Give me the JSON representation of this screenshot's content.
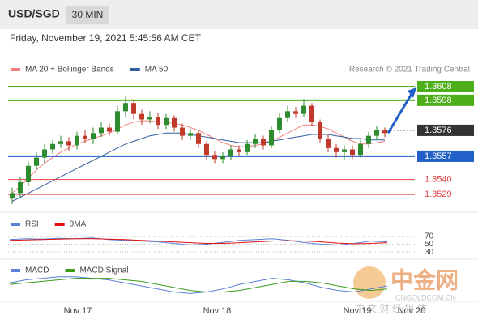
{
  "header": {
    "symbol": "USD/SGD",
    "interval": "30 MIN",
    "datetime": "Friday, November 19, 2021 5:45:56 AM CET"
  },
  "chart_data": [
    {
      "type": "candlestick",
      "credit": "Research © 2021 Trading Central",
      "ylim": [
        1.3516,
        1.3627
      ],
      "up_color": "#2e8b2e",
      "down_color": "#c0392b",
      "open": [
        1.3526,
        1.353,
        1.3538,
        1.355,
        1.3556,
        1.3562,
        1.3566,
        1.3568,
        1.3565,
        1.3572,
        1.357,
        1.3574,
        1.3578,
        1.3575,
        1.359,
        1.3596,
        1.3588,
        1.3584,
        1.3586,
        1.358,
        1.3585,
        1.3578,
        1.3572,
        1.3574,
        1.3566,
        1.3558,
        1.3555,
        1.3557,
        1.3562,
        1.356,
        1.3566,
        1.357,
        1.3565,
        1.3576,
        1.3585,
        1.359,
        1.3588,
        1.3594,
        1.3582,
        1.357,
        1.3563,
        1.356,
        1.3562,
        1.3558,
        1.3566,
        1.3572,
        1.3576
      ],
      "high": [
        1.3534,
        1.3542,
        1.3553,
        1.356,
        1.3566,
        1.3569,
        1.3572,
        1.3571,
        1.3575,
        1.3576,
        1.3578,
        1.3582,
        1.3581,
        1.3594,
        1.3601,
        1.3598,
        1.3591,
        1.359,
        1.3589,
        1.3588,
        1.3587,
        1.3581,
        1.3577,
        1.3576,
        1.3568,
        1.3561,
        1.356,
        1.3565,
        1.3565,
        1.3569,
        1.3573,
        1.3572,
        1.3579,
        1.3589,
        1.3594,
        1.3593,
        1.3599,
        1.3596,
        1.3584,
        1.3573,
        1.3566,
        1.3565,
        1.3565,
        1.3569,
        1.3575,
        1.3579,
        1.3578
      ],
      "low": [
        1.3522,
        1.3527,
        1.3535,
        1.3547,
        1.3552,
        1.3559,
        1.3563,
        1.3561,
        1.3562,
        1.3567,
        1.3566,
        1.3571,
        1.3572,
        1.3573,
        1.3586,
        1.3584,
        1.358,
        1.3581,
        1.3577,
        1.3577,
        1.3575,
        1.3569,
        1.3569,
        1.3563,
        1.3554,
        1.3552,
        1.3552,
        1.3554,
        1.3557,
        1.3558,
        1.3563,
        1.3562,
        1.3563,
        1.3574,
        1.3582,
        1.3585,
        1.3586,
        1.3579,
        1.3567,
        1.356,
        1.3556,
        1.3554,
        1.3555,
        1.3556,
        1.3563,
        1.3569,
        1.3571
      ],
      "close": [
        1.353,
        1.3538,
        1.355,
        1.3556,
        1.3562,
        1.3566,
        1.3568,
        1.3565,
        1.3572,
        1.357,
        1.3574,
        1.3578,
        1.3575,
        1.359,
        1.3596,
        1.3588,
        1.3584,
        1.3586,
        1.358,
        1.3585,
        1.3578,
        1.3572,
        1.3574,
        1.3566,
        1.3558,
        1.3555,
        1.3557,
        1.3562,
        1.356,
        1.3566,
        1.357,
        1.3565,
        1.3576,
        1.3585,
        1.359,
        1.3588,
        1.3594,
        1.3582,
        1.357,
        1.3563,
        1.356,
        1.3562,
        1.3558,
        1.3566,
        1.3572,
        1.3576,
        1.3574
      ],
      "series": [
        {
          "name": "MA 20 + Bollinger Bands",
          "color": "#f08080",
          "values": [
            1.353,
            1.3535,
            1.3541,
            1.3547,
            1.3552,
            1.3556,
            1.356,
            1.3563,
            1.3566,
            1.3568,
            1.357,
            1.3572,
            1.3574,
            1.3577,
            1.358,
            1.3582,
            1.3583,
            1.3583,
            1.3582,
            1.3582,
            1.3581,
            1.358,
            1.3578,
            1.3576,
            1.3573,
            1.357,
            1.3567,
            1.3565,
            1.3564,
            1.3564,
            1.3565,
            1.3566,
            1.3568,
            1.3571,
            1.3574,
            1.3577,
            1.358,
            1.358,
            1.3579,
            1.3577,
            1.3574,
            1.3571,
            1.3568,
            1.3566,
            1.3566,
            1.3567,
            1.3568
          ]
        },
        {
          "name": "MA 50",
          "color": "#2f5fa0",
          "values": [
            1.3524,
            1.3527,
            1.353,
            1.3533,
            1.3536,
            1.3539,
            1.3542,
            1.3545,
            1.3548,
            1.3551,
            1.3554,
            1.3557,
            1.356,
            1.3563,
            1.3566,
            1.3568,
            1.357,
            1.3572,
            1.3573,
            1.3574,
            1.3574,
            1.3574,
            1.3573,
            1.3572,
            1.3571,
            1.357,
            1.3569,
            1.3568,
            1.3567,
            1.3567,
            1.3567,
            1.3567,
            1.3568,
            1.3569,
            1.357,
            1.3571,
            1.3572,
            1.3573,
            1.3573,
            1.3573,
            1.3572,
            1.3571,
            1.357,
            1.357,
            1.3569,
            1.3569,
            1.3569
          ]
        }
      ],
      "levels": [
        {
          "value": 1.3608,
          "label": "1.3608",
          "color": "#4caf1a",
          "style": "box"
        },
        {
          "value": 1.3598,
          "label": "1.3598",
          "color": "#4caf1a",
          "style": "box"
        },
        {
          "value": 1.3576,
          "label": "1.3576",
          "color": "#333333",
          "style": "current"
        },
        {
          "value": 1.3557,
          "label": "1.3557",
          "color": "#2060c8",
          "style": "box"
        },
        {
          "value": 1.354,
          "label": "1.3540",
          "color": "#e04040",
          "style": "text"
        },
        {
          "value": 1.3529,
          "label": "1.3529",
          "color": "#e04040",
          "style": "text"
        }
      ]
    },
    {
      "type": "line",
      "ylim": [
        20,
        80
      ],
      "yticks": [
        70,
        50,
        30
      ],
      "series": [
        {
          "name": "RSI",
          "color": "#5a7fd6",
          "values": [
            62,
            64,
            63,
            65,
            64,
            66,
            62,
            60,
            58,
            56,
            52,
            48,
            50,
            55,
            60,
            62,
            64,
            60,
            54,
            50,
            48,
            52,
            58,
            56
          ]
        },
        {
          "name": "9MA",
          "color": "#e01010",
          "values": [
            60,
            61,
            62,
            63,
            64,
            64,
            63,
            62,
            60,
            58,
            56,
            54,
            52,
            52,
            54,
            56,
            58,
            59,
            58,
            56,
            53,
            51,
            52,
            54
          ]
        }
      ]
    },
    {
      "type": "line",
      "ylim": [
        -0.0008,
        0.0008
      ],
      "series": [
        {
          "name": "MACD",
          "color": "#5a7fd6",
          "values": [
            0.0002,
            0.0004,
            0.0005,
            0.0006,
            0.0006,
            0.0005,
            0.0004,
            0.0002,
            0.0,
            -0.0002,
            -0.0004,
            -0.0005,
            -0.0004,
            -0.0002,
            0.0001,
            0.0003,
            0.0005,
            0.0004,
            0.0002,
            -0.0001,
            -0.0003,
            -0.0004,
            -0.0002,
            0.0
          ]
        },
        {
          "name": "MACD Signal",
          "color": "#3a9a1a",
          "values": [
            0.0001,
            0.0002,
            0.0003,
            0.0004,
            0.0005,
            0.0005,
            0.0005,
            0.0004,
            0.0003,
            0.0001,
            -0.0001,
            -0.0003,
            -0.0004,
            -0.0004,
            -0.0003,
            -0.0001,
            0.0001,
            0.0003,
            0.0003,
            0.0002,
            0.0,
            -0.0002,
            -0.0003,
            -0.0002
          ]
        }
      ]
    }
  ],
  "x_labels": [
    "Nov 17",
    "Nov 18",
    "Nov 19",
    "Nov 20"
  ],
  "watermark": {
    "name": "中金网",
    "url": "CNGOLDCOM.CN",
    "tagline": "中 文 财 经 媒 体"
  }
}
